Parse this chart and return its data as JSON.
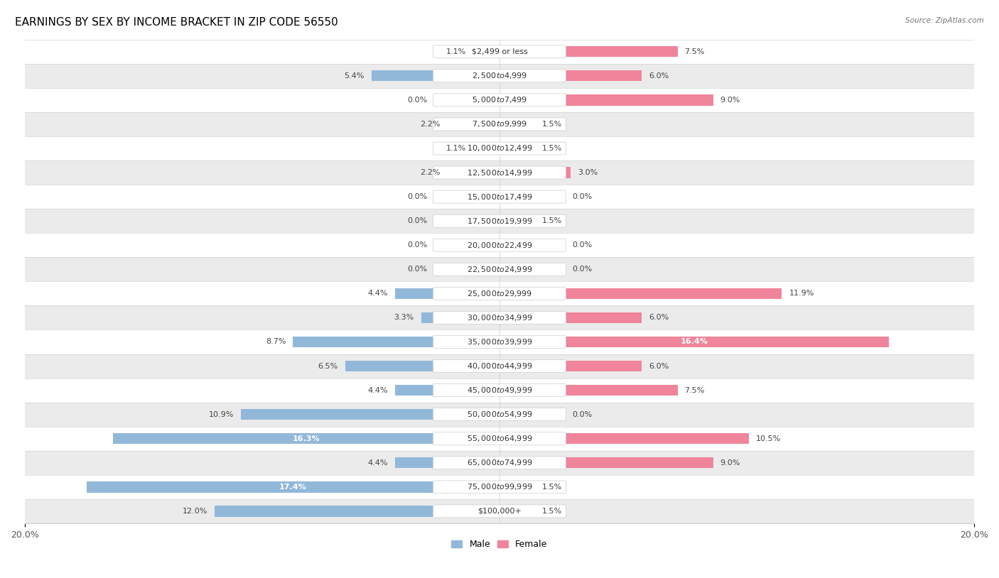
{
  "title": "EARNINGS BY SEX BY INCOME BRACKET IN ZIP CODE 56550",
  "source": "Source: ZipAtlas.com",
  "categories": [
    "$2,499 or less",
    "$2,500 to $4,999",
    "$5,000 to $7,499",
    "$7,500 to $9,999",
    "$10,000 to $12,499",
    "$12,500 to $14,999",
    "$15,000 to $17,499",
    "$17,500 to $19,999",
    "$20,000 to $22,499",
    "$22,500 to $24,999",
    "$25,000 to $29,999",
    "$30,000 to $34,999",
    "$35,000 to $39,999",
    "$40,000 to $44,999",
    "$45,000 to $49,999",
    "$50,000 to $54,999",
    "$55,000 to $64,999",
    "$65,000 to $74,999",
    "$75,000 to $99,999",
    "$100,000+"
  ],
  "male_values": [
    1.1,
    5.4,
    0.0,
    2.2,
    1.1,
    2.2,
    0.0,
    0.0,
    0.0,
    0.0,
    4.4,
    3.3,
    8.7,
    6.5,
    4.4,
    10.9,
    16.3,
    4.4,
    17.4,
    12.0
  ],
  "female_values": [
    7.5,
    6.0,
    9.0,
    1.5,
    1.5,
    3.0,
    0.0,
    1.5,
    0.0,
    0.0,
    11.9,
    6.0,
    16.4,
    6.0,
    7.5,
    0.0,
    10.5,
    9.0,
    1.5,
    1.5
  ],
  "male_color": "#92b8d9",
  "female_color": "#f0849a",
  "male_label": "Male",
  "female_label": "Female",
  "axis_max": 20.0,
  "bg_white": "#ffffff",
  "bg_gray": "#ebebeb",
  "title_fontsize": 11,
  "label_fontsize": 9,
  "tick_fontsize": 9,
  "bar_label_fontsize": 8,
  "category_fontsize": 8,
  "bar_height": 0.45,
  "label_inside_threshold": 14.0
}
